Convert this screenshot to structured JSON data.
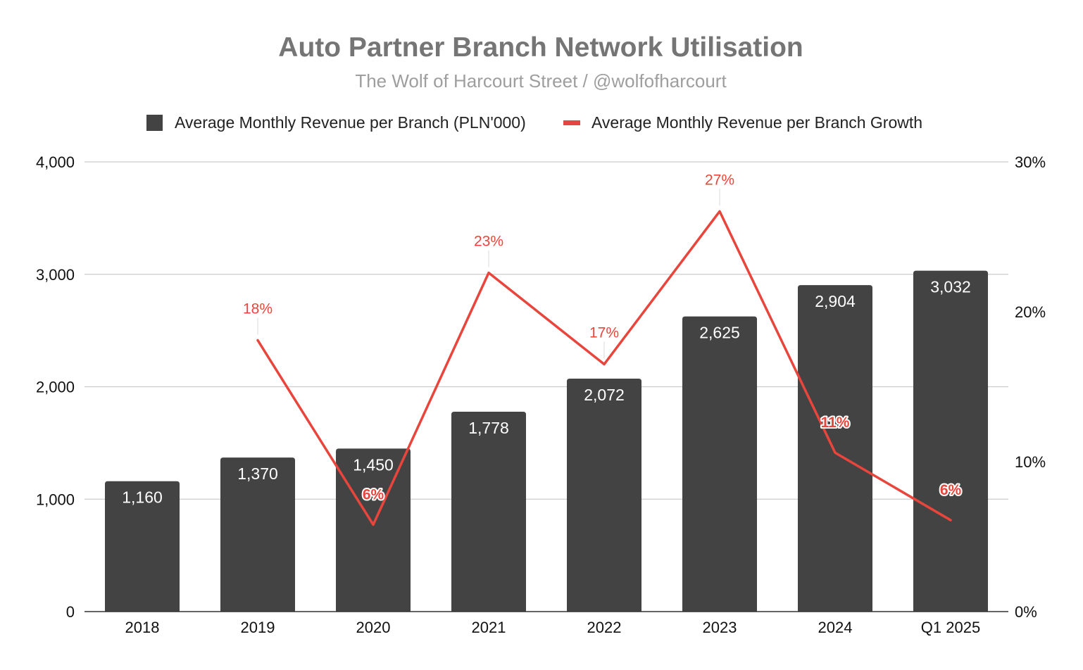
{
  "chart_data": {
    "type": "bar",
    "title": "Auto Partner Branch Network Utilisation",
    "subtitle": "The Wolf of Harcourt Street / @wolfofharcourt",
    "categories": [
      "2018",
      "2019",
      "2020",
      "2021",
      "2022",
      "2023",
      "2024",
      "Q1 2025"
    ],
    "series": [
      {
        "name": "Average Monthly Revenue per Branch (PLN'000)",
        "type": "bar",
        "axis": "left",
        "color": "#434343",
        "values": [
          1160,
          1370,
          1450,
          1778,
          2072,
          2625,
          2904,
          3032
        ],
        "labels": [
          "1,160",
          "1,370",
          "1,450",
          "1,778",
          "2,072",
          "2,625",
          "2,904",
          "3,032"
        ]
      },
      {
        "name": "Average Monthly Revenue per Branch Growth",
        "type": "line",
        "axis": "right",
        "color": "#e8453c",
        "values": [
          null,
          18.1,
          5.8,
          22.6,
          16.5,
          26.7,
          10.6,
          6.1
        ],
        "labels": [
          null,
          "18%",
          "6%",
          "23%",
          "17%",
          "27%",
          "11%",
          "6%"
        ],
        "label_positions": [
          null,
          "above",
          "inside",
          "above",
          "above",
          "above",
          "inside",
          "inside"
        ]
      }
    ],
    "y_left": {
      "min": 0,
      "max": 4000,
      "ticks": [
        0,
        1000,
        2000,
        3000,
        4000
      ],
      "tick_labels": [
        "0",
        "1,000",
        "2,000",
        "3,000",
        "4,000"
      ]
    },
    "y_right": {
      "min": 0,
      "max": 30,
      "ticks": [
        0,
        10,
        20,
        30
      ],
      "tick_labels": [
        "0%",
        "10%",
        "20%",
        "30%"
      ]
    },
    "legend_position": "top-center",
    "grid": true
  }
}
